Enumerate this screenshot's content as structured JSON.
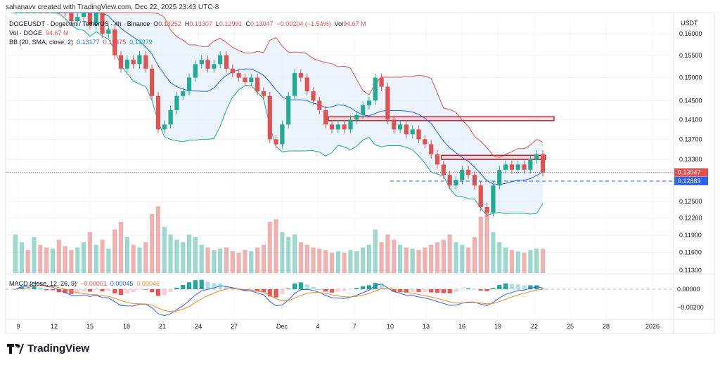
{
  "credit": "sahanavv created with TradingView.com, Dec 22, 2025 23:43 UTC-8",
  "legend": {
    "symbol": "DOGEUSDT · Dogecoin / TetherUS · 4h · Binance",
    "o_label": "O",
    "o": "0.13252",
    "h_label": "H",
    "h": "0.13307",
    "l_label": "L",
    "l": "0.12991",
    "c_label": "C",
    "c": "0.13047",
    "change": "−0.00204 (−1.54%)",
    "vol_label": "Vol",
    "vol": "94.67 M",
    "vol_title": "Vol · DOGE",
    "vol_value": "94.67 M",
    "bb_title": "BB (20, SMA, close, 2)",
    "bb_basis": "0.13177",
    "bb_upper": "0.13375",
    "bb_lower": "0.12979",
    "macd_title": "MACD (close, 12, 26, 9)",
    "macd_hist": "−0.00001",
    "macd_line": "0.00045",
    "macd_signal": "0.00046"
  },
  "footer": {
    "brand": "TradingView"
  },
  "colors": {
    "up": "#22ab94",
    "down": "#e0524f",
    "bb_upper": "#e0524f",
    "bb_basis": "#2962ff",
    "bb_lower": "#22ab94",
    "bb_fill": "#e3f0fb",
    "macd": "#2962ff",
    "signal": "#f08a24",
    "zone": "#b22833"
  },
  "chart_data": {
    "type": "candlestick",
    "currency_label": "USDT",
    "price_ticks": [
      "0.16000",
      "0.15500",
      "0.15000",
      "0.14500",
      "0.14100",
      "0.13700",
      "0.13300",
      "0.12500",
      "0.12200",
      "0.11900",
      "0.11600",
      "0.11300"
    ],
    "macd_ticks": [
      "0.00000",
      "−0.00200"
    ],
    "x_ticks": [
      "9",
      "12",
      "15",
      "18",
      "21",
      "24",
      "27",
      "Dec",
      "4",
      "7",
      "10",
      "13",
      "16",
      "19",
      "22",
      "25",
      "28",
      "2026"
    ],
    "last_price": "0.13047",
    "horizontal_line": "0.12883",
    "zones": [
      {
        "low": 0.1408,
        "high": 0.1416
      },
      {
        "low": 0.133,
        "high": 0.1338
      }
    ],
    "closes": [
      0.168,
      0.172,
      0.17,
      0.175,
      0.171,
      0.168,
      0.17,
      0.166,
      0.165,
      0.163,
      0.164,
      0.166,
      0.162,
      0.165,
      0.16,
      0.161,
      0.155,
      0.152,
      0.154,
      0.153,
      0.155,
      0.152,
      0.146,
      0.139,
      0.14,
      0.143,
      0.146,
      0.147,
      0.15,
      0.153,
      0.154,
      0.152,
      0.153,
      0.155,
      0.152,
      0.151,
      0.15,
      0.149,
      0.15,
      0.147,
      0.146,
      0.137,
      0.136,
      0.14,
      0.146,
      0.151,
      0.15,
      0.147,
      0.145,
      0.143,
      0.14,
      0.139,
      0.14,
      0.139,
      0.141,
      0.142,
      0.144,
      0.145,
      0.15,
      0.148,
      0.141,
      0.139,
      0.14,
      0.138,
      0.139,
      0.137,
      0.136,
      0.134,
      0.132,
      0.13,
      0.128,
      0.129,
      0.131,
      0.13,
      0.128,
      0.124,
      0.123,
      0.128,
      0.131,
      0.132,
      0.131,
      0.132,
      0.131,
      0.133,
      0.134,
      0.13047
    ],
    "volumes_m": [
      150,
      120,
      90,
      140,
      110,
      100,
      95,
      130,
      105,
      90,
      100,
      120,
      160,
      110,
      130,
      95,
      170,
      200,
      140,
      110,
      100,
      120,
      230,
      260,
      180,
      150,
      130,
      120,
      150,
      140,
      110,
      100,
      90,
      95,
      100,
      85,
      80,
      90,
      85,
      100,
      110,
      200,
      210,
      160,
      140,
      150,
      120,
      110,
      100,
      95,
      90,
      80,
      85,
      80,
      90,
      85,
      100,
      110,
      170,
      120,
      150,
      130,
      110,
      100,
      95,
      90,
      100,
      110,
      120,
      130,
      150,
      120,
      110,
      100,
      140,
      220,
      240,
      160,
      120,
      100,
      90,
      85,
      80,
      90,
      95,
      94.67
    ]
  }
}
